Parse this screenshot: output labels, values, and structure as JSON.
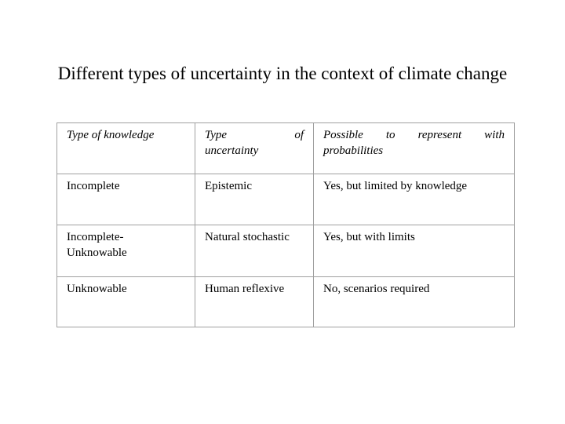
{
  "slide": {
    "title": "Different types of uncertainty in the context of climate change"
  },
  "table": {
    "headers": {
      "col1": "Type of knowledge",
      "col2": {
        "line1": [
          "Type",
          "of"
        ],
        "line2": "uncertainty",
        "full": "Type of uncertainty"
      },
      "col3": {
        "line1": [
          "Possible",
          "to",
          "represent",
          "with"
        ],
        "line2": "probabilities",
        "full": "Possible to represent with probabilities"
      }
    },
    "rows": [
      [
        "Incomplete",
        "Epistemic",
        "Yes, but limited by knowledge"
      ],
      [
        "Incomplete-\nUnknowable",
        "Natural stochastic",
        "Yes, but with limits"
      ],
      [
        "Unknowable",
        "Human reflexive",
        "No, scenarios required"
      ]
    ]
  },
  "colors": {
    "background": "#ffffff",
    "text": "#000000",
    "table_border": "#a0a0a0"
  }
}
